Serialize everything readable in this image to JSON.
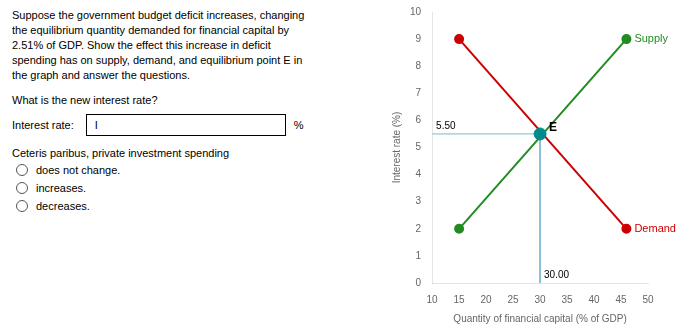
{
  "chart_data": {
    "type": "line",
    "title": [
      "Suppose the government budget deficit increases, changing",
      "the equilibrium quantity demanded for financial capital by",
      "2.51% of GDP. Show the effect this increase in deficit",
      "spending has on supply, demand, and equilibrium point E in",
      "the graph and answer the questions."
    ],
    "xlabel": "Quantity of financial capital (% of GDP)",
    "ylabel": "Interest rate (%)",
    "xlim": [
      10,
      50
    ],
    "ylim": [
      0,
      10
    ],
    "xticks": [
      10,
      15,
      20,
      25,
      30,
      35,
      40,
      45,
      50
    ],
    "yticks": [
      0,
      1,
      2,
      3,
      4,
      5,
      6,
      7,
      8,
      9,
      10
    ],
    "grid": false,
    "series": [
      {
        "name": "Supply",
        "color": "#228B22",
        "x": [
          15,
          46
        ],
        "values": [
          2,
          9
        ],
        "marker": "circle"
      },
      {
        "name": "Demand",
        "color": "#CC0000",
        "x": [
          15,
          46
        ],
        "values": [
          9,
          2
        ],
        "marker": "circle"
      },
      {
        "color": "#7EB6D4",
        "x": [
          10,
          30.0,
          30.0
        ],
        "values": [
          5.5,
          5.5,
          0
        ]
      },
      {
        "type": "scatter",
        "color": "#008B8B",
        "x": [
          30.0
        ],
        "values": [
          5.5
        ],
        "marker": "circle"
      }
    ],
    "annotations": [
      {
        "text": "E",
        "x": 30.0,
        "y": 5.5
      },
      {
        "text": "5.50",
        "y": 5.5
      },
      {
        "text": "30.00",
        "x": 30.0
      },
      {
        "text": "What is the new interest rate?"
      },
      {
        "text": "Interest rate:",
        "field": "I",
        "unit": "%"
      },
      {
        "text": "Ceteris paribus, private investment spending"
      },
      {
        "text": "does not change.",
        "marker": "circle"
      },
      {
        "text": "increases.",
        "marker": "circle"
      },
      {
        "text": "decreases.",
        "marker": "circle"
      }
    ]
  }
}
